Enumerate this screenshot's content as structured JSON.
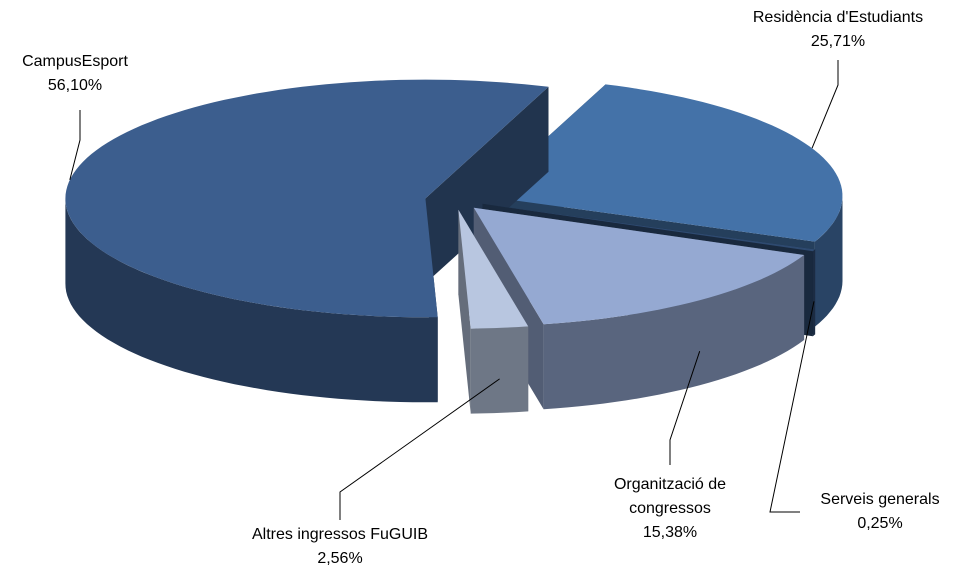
{
  "chart_data": {
    "type": "pie3d",
    "categories": [
      "Residència d'Estudiants",
      "Serveis generals",
      "Organització de congressos",
      "Altres ingressos FuGUIB",
      "CampusEsport"
    ],
    "values": [
      25.71,
      0.25,
      15.38,
      2.56,
      56.1
    ],
    "value_labels": [
      "25,71%",
      "0,25%",
      "15,38%",
      "2,56%",
      "56,10%"
    ],
    "colors": [
      "#4472a8",
      "#2e4a70",
      "#95a9d2",
      "#b8c6e0",
      "#3c5e8e"
    ]
  }
}
